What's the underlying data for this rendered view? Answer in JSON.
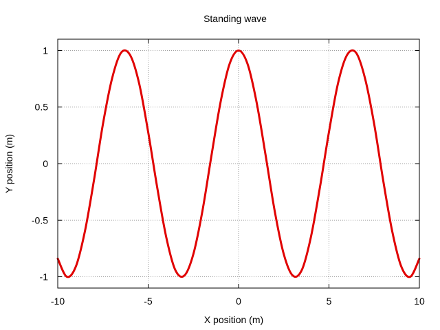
{
  "chart_data": {
    "type": "line",
    "title": "Standing wave",
    "xlabel": "X position (m)",
    "ylabel": "Y position (m)",
    "xlim": [
      -10,
      10
    ],
    "ylim": [
      -1.1,
      1.1
    ],
    "grid": true,
    "x_ticks": [
      -10,
      -5,
      0,
      5,
      10
    ],
    "x_tick_labels": [
      "-10",
      "-5",
      "0",
      "5",
      "10"
    ],
    "y_ticks": [
      -1,
      -0.5,
      0,
      0.5,
      1
    ],
    "y_tick_labels": [
      "-1",
      "-0.5",
      "0",
      "0.5",
      "1"
    ],
    "series": [
      {
        "color": "#e00000",
        "x": [
          -10,
          -9.5,
          -9,
          -8.5,
          -8,
          -7.5,
          -7,
          -6.5,
          -6,
          -5.5,
          -5,
          -4.5,
          -4,
          -3.5,
          -3,
          -2.5,
          -2,
          -1.5,
          -1,
          -0.5,
          0,
          0.5,
          1,
          1.5,
          2,
          2.5,
          3,
          3.5,
          4,
          4.5,
          5,
          5.5,
          6,
          6.5,
          7,
          7.5,
          8,
          8.5,
          9,
          9.5,
          10
        ],
        "y": [
          -0.84,
          -1.0,
          -0.91,
          -0.6,
          -0.15,
          0.35,
          0.75,
          0.98,
          0.96,
          0.71,
          0.28,
          -0.21,
          -0.65,
          -0.94,
          -0.99,
          -0.8,
          -0.42,
          0.07,
          0.54,
          0.88,
          1.0,
          0.88,
          0.54,
          0.07,
          -0.42,
          -0.8,
          -0.99,
          -0.94,
          -0.65,
          -0.21,
          0.28,
          0.71,
          0.96,
          0.98,
          0.75,
          0.35,
          -0.15,
          -0.6,
          -0.91,
          -1.0,
          -0.84
        ]
      }
    ]
  }
}
